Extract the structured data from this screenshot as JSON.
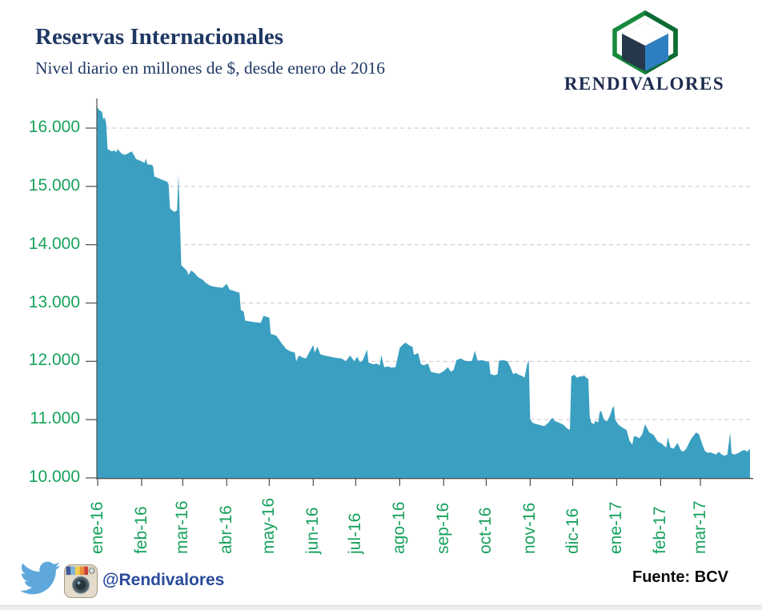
{
  "header": {
    "title": "Reservas Internacionales",
    "subtitle": "Nivel diario en millones de $, desde enero de 2016"
  },
  "logo": {
    "brand": "RENDIVALORES",
    "hex_outline": "#17893d",
    "hex_outline_dark": "#0d6c33",
    "cube_left": "#26384a",
    "cube_right": "#2e7fc2",
    "cube_top": "#ffffff"
  },
  "footer": {
    "handle": "@Rendivalores",
    "source": "Fuente: BCV",
    "twitter_blue": "#5fa8dc"
  },
  "colors": {
    "area": "#3a9fc1",
    "green_label": "#17a25c",
    "navy": "#1f3864",
    "handle_blue": "#2a4b9b",
    "grid": "#c6c6c6",
    "axis": "#4d4d4d"
  },
  "chart_data": {
    "type": "area",
    "title": "Reservas Internacionales",
    "subtitle": "Nivel diario en millones de $, desde enero de 2016",
    "unit": "millones de $",
    "source": "BCV",
    "grid": "horizontal-dashed",
    "legend": null,
    "ylim": [
      10000,
      16500
    ],
    "x_range": [
      "2016-01-01",
      "2017-04-05"
    ],
    "y_ticks": [
      {
        "label": "16.000",
        "value": 16000
      },
      {
        "label": "15.000",
        "value": 15000
      },
      {
        "label": "14.000",
        "value": 14000
      },
      {
        "label": "13.000",
        "value": 13000
      },
      {
        "label": "12.000",
        "value": 12000
      },
      {
        "label": "11.000",
        "value": 11000
      },
      {
        "label": "10.000",
        "value": 10000
      }
    ],
    "x_ticks": [
      {
        "label": "ene-16",
        "date": "2016-01-01"
      },
      {
        "label": "feb-16",
        "date": "2016-02-01"
      },
      {
        "label": "mar-16",
        "date": "2016-03-01"
      },
      {
        "label": "abr-16",
        "date": "2016-04-01"
      },
      {
        "label": "may-16",
        "date": "2016-05-01"
      },
      {
        "label": "jun-16",
        "date": "2016-06-01"
      },
      {
        "label": "jul-16",
        "date": "2016-07-01"
      },
      {
        "label": "ago-16",
        "date": "2016-08-01"
      },
      {
        "label": "sep-16",
        "date": "2016-09-01"
      },
      {
        "label": "oct-16",
        "date": "2016-10-01"
      },
      {
        "label": "nov-16",
        "date": "2016-11-01"
      },
      {
        "label": "dic-16",
        "date": "2016-12-01"
      },
      {
        "label": "ene-17",
        "date": "2017-01-01"
      },
      {
        "label": "feb-17",
        "date": "2017-02-01"
      },
      {
        "label": "mar-17",
        "date": "2017-03-01"
      }
    ],
    "series": [
      {
        "name": "Reservas internacionales (nivel diario, MM $)",
        "points": [
          [
            "2016-01-01",
            16350
          ],
          [
            "2016-01-02",
            16310
          ],
          [
            "2016-01-04",
            16280
          ],
          [
            "2016-01-05",
            16150
          ],
          [
            "2016-01-06",
            16180
          ],
          [
            "2016-01-07",
            16080
          ],
          [
            "2016-01-08",
            15640
          ],
          [
            "2016-01-11",
            15600
          ],
          [
            "2016-01-13",
            15620
          ],
          [
            "2016-01-14",
            15580
          ],
          [
            "2016-01-15",
            15640
          ],
          [
            "2016-01-18",
            15560
          ],
          [
            "2016-01-20",
            15540
          ],
          [
            "2016-01-22",
            15560
          ],
          [
            "2016-01-25",
            15600
          ],
          [
            "2016-01-27",
            15520
          ],
          [
            "2016-01-28",
            15470
          ],
          [
            "2016-01-31",
            15440
          ],
          [
            "2016-02-02",
            15420
          ],
          [
            "2016-02-03",
            15400
          ],
          [
            "2016-02-04",
            15480
          ],
          [
            "2016-02-05",
            15380
          ],
          [
            "2016-02-08",
            15370
          ],
          [
            "2016-02-09",
            15350
          ],
          [
            "2016-02-10",
            15170
          ],
          [
            "2016-02-12",
            15150
          ],
          [
            "2016-02-15",
            15120
          ],
          [
            "2016-02-17",
            15100
          ],
          [
            "2016-02-19",
            15080
          ],
          [
            "2016-02-20",
            15040
          ],
          [
            "2016-02-21",
            14620
          ],
          [
            "2016-02-24",
            14560
          ],
          [
            "2016-02-26",
            14590
          ],
          [
            "2016-02-27",
            15200
          ],
          [
            "2016-02-29",
            13650
          ],
          [
            "2016-03-02",
            13600
          ],
          [
            "2016-03-04",
            13550
          ],
          [
            "2016-03-05",
            13480
          ],
          [
            "2016-03-07",
            13560
          ],
          [
            "2016-03-09",
            13520
          ],
          [
            "2016-03-12",
            13440
          ],
          [
            "2016-03-15",
            13400
          ],
          [
            "2016-03-17",
            13350
          ],
          [
            "2016-03-20",
            13300
          ],
          [
            "2016-03-23",
            13280
          ],
          [
            "2016-03-26",
            13270
          ],
          [
            "2016-03-29",
            13260
          ],
          [
            "2016-04-01",
            13330
          ],
          [
            "2016-04-03",
            13230
          ],
          [
            "2016-04-06",
            13210
          ],
          [
            "2016-04-08",
            13190
          ],
          [
            "2016-04-10",
            13180
          ],
          [
            "2016-04-11",
            12880
          ],
          [
            "2016-04-13",
            12850
          ],
          [
            "2016-04-14",
            12700
          ],
          [
            "2016-04-18",
            12680
          ],
          [
            "2016-04-21",
            12670
          ],
          [
            "2016-04-25",
            12660
          ],
          [
            "2016-04-27",
            12780
          ],
          [
            "2016-05-01",
            12750
          ],
          [
            "2016-05-02",
            12470
          ],
          [
            "2016-05-06",
            12440
          ],
          [
            "2016-05-10",
            12300
          ],
          [
            "2016-05-13",
            12210
          ],
          [
            "2016-05-16",
            12170
          ],
          [
            "2016-05-19",
            12150
          ],
          [
            "2016-05-20",
            12000
          ],
          [
            "2016-05-22",
            12100
          ],
          [
            "2016-05-25",
            12060
          ],
          [
            "2016-05-27",
            12050
          ],
          [
            "2016-06-01",
            12280
          ],
          [
            "2016-06-02",
            12150
          ],
          [
            "2016-06-04",
            12250
          ],
          [
            "2016-06-06",
            12120
          ],
          [
            "2016-06-09",
            12100
          ],
          [
            "2016-06-13",
            12080
          ],
          [
            "2016-06-17",
            12060
          ],
          [
            "2016-06-21",
            12050
          ],
          [
            "2016-06-24",
            12000
          ],
          [
            "2016-06-27",
            12100
          ],
          [
            "2016-06-30",
            12000
          ],
          [
            "2016-07-02",
            12080
          ],
          [
            "2016-07-04",
            11980
          ],
          [
            "2016-07-06",
            12020
          ],
          [
            "2016-07-09",
            12200
          ],
          [
            "2016-07-10",
            11980
          ],
          [
            "2016-07-13",
            11950
          ],
          [
            "2016-07-16",
            11960
          ],
          [
            "2016-07-18",
            11930
          ],
          [
            "2016-07-19",
            12110
          ],
          [
            "2016-07-21",
            11900
          ],
          [
            "2016-07-24",
            11910
          ],
          [
            "2016-07-26",
            11890
          ],
          [
            "2016-07-29",
            11900
          ],
          [
            "2016-08-01",
            12230
          ],
          [
            "2016-08-03",
            12280
          ],
          [
            "2016-08-05",
            12320
          ],
          [
            "2016-08-08",
            12270
          ],
          [
            "2016-08-10",
            12250
          ],
          [
            "2016-08-11",
            12110
          ],
          [
            "2016-08-14",
            12140
          ],
          [
            "2016-08-16",
            11950
          ],
          [
            "2016-08-18",
            11930
          ],
          [
            "2016-08-21",
            11960
          ],
          [
            "2016-08-23",
            11820
          ],
          [
            "2016-08-26",
            11800
          ],
          [
            "2016-08-29",
            11790
          ],
          [
            "2016-09-01",
            11830
          ],
          [
            "2016-09-04",
            11900
          ],
          [
            "2016-09-06",
            11820
          ],
          [
            "2016-09-08",
            11850
          ],
          [
            "2016-09-10",
            12020
          ],
          [
            "2016-09-13",
            12050
          ],
          [
            "2016-09-16",
            12010
          ],
          [
            "2016-09-19",
            12000
          ],
          [
            "2016-09-21",
            12010
          ],
          [
            "2016-09-23",
            12180
          ],
          [
            "2016-09-25",
            12010
          ],
          [
            "2016-09-28",
            12020
          ],
          [
            "2016-10-01",
            12000
          ],
          [
            "2016-10-03",
            11990
          ],
          [
            "2016-10-04",
            11780
          ],
          [
            "2016-10-07",
            11760
          ],
          [
            "2016-10-09",
            11780
          ],
          [
            "2016-10-10",
            12010
          ],
          [
            "2016-10-13",
            12020
          ],
          [
            "2016-10-16",
            12000
          ],
          [
            "2016-10-18",
            11900
          ],
          [
            "2016-10-20",
            11780
          ],
          [
            "2016-10-22",
            11800
          ],
          [
            "2016-10-24",
            11770
          ],
          [
            "2016-10-26",
            11750
          ],
          [
            "2016-10-28",
            11720
          ],
          [
            "2016-10-30",
            11960
          ],
          [
            "2016-10-31",
            12020
          ],
          [
            "2016-11-01",
            11000
          ],
          [
            "2016-11-03",
            10940
          ],
          [
            "2016-11-06",
            10920
          ],
          [
            "2016-11-09",
            10900
          ],
          [
            "2016-11-11",
            10890
          ],
          [
            "2016-11-14",
            10950
          ],
          [
            "2016-11-16",
            11020
          ],
          [
            "2016-11-17",
            11030
          ],
          [
            "2016-11-18",
            10980
          ],
          [
            "2016-11-21",
            10950
          ],
          [
            "2016-11-23",
            10930
          ],
          [
            "2016-11-25",
            10900
          ],
          [
            "2016-11-27",
            10850
          ],
          [
            "2016-11-29",
            10820
          ],
          [
            "2016-11-30",
            11740
          ],
          [
            "2016-12-02",
            11770
          ],
          [
            "2016-12-04",
            11720
          ],
          [
            "2016-12-06",
            11740
          ],
          [
            "2016-12-08",
            11740
          ],
          [
            "2016-12-09",
            11760
          ],
          [
            "2016-12-10",
            11730
          ],
          [
            "2016-12-12",
            11700
          ],
          [
            "2016-12-13",
            11050
          ],
          [
            "2016-12-14",
            10950
          ],
          [
            "2016-12-16",
            10920
          ],
          [
            "2016-12-17",
            10980
          ],
          [
            "2016-12-19",
            10950
          ],
          [
            "2016-12-20",
            11130
          ],
          [
            "2016-12-21",
            11150
          ],
          [
            "2016-12-23",
            11000
          ],
          [
            "2016-12-25",
            10970
          ],
          [
            "2016-12-27",
            11050
          ],
          [
            "2016-12-29",
            11200
          ],
          [
            "2016-12-30",
            11230
          ],
          [
            "2016-12-31",
            11000
          ],
          [
            "2017-01-02",
            10920
          ],
          [
            "2017-01-04",
            10880
          ],
          [
            "2017-01-06",
            10850
          ],
          [
            "2017-01-08",
            10820
          ],
          [
            "2017-01-10",
            10640
          ],
          [
            "2017-01-12",
            10570
          ],
          [
            "2017-01-13",
            10700
          ],
          [
            "2017-01-14",
            10720
          ],
          [
            "2017-01-17",
            10680
          ],
          [
            "2017-01-19",
            10750
          ],
          [
            "2017-01-21",
            10920
          ],
          [
            "2017-01-24",
            10780
          ],
          [
            "2017-01-27",
            10740
          ],
          [
            "2017-01-30",
            10620
          ],
          [
            "2017-02-01",
            10600
          ],
          [
            "2017-02-03",
            10560
          ],
          [
            "2017-02-05",
            10520
          ],
          [
            "2017-02-06",
            10700
          ],
          [
            "2017-02-08",
            10520
          ],
          [
            "2017-02-10",
            10500
          ],
          [
            "2017-02-13",
            10600
          ],
          [
            "2017-02-15",
            10480
          ],
          [
            "2017-02-17",
            10450
          ],
          [
            "2017-02-19",
            10500
          ],
          [
            "2017-02-22",
            10650
          ],
          [
            "2017-02-24",
            10720
          ],
          [
            "2017-02-26",
            10780
          ],
          [
            "2017-02-28",
            10750
          ],
          [
            "2017-03-02",
            10600
          ],
          [
            "2017-03-04",
            10470
          ],
          [
            "2017-03-06",
            10430
          ],
          [
            "2017-03-08",
            10440
          ],
          [
            "2017-03-10",
            10420
          ],
          [
            "2017-03-12",
            10400
          ],
          [
            "2017-03-14",
            10450
          ],
          [
            "2017-03-16",
            10400
          ],
          [
            "2017-03-18",
            10380
          ],
          [
            "2017-03-20",
            10400
          ],
          [
            "2017-03-22",
            10780
          ],
          [
            "2017-03-23",
            10420
          ],
          [
            "2017-03-25",
            10400
          ],
          [
            "2017-03-28",
            10430
          ],
          [
            "2017-03-30",
            10460
          ],
          [
            "2017-04-01",
            10480
          ],
          [
            "2017-04-03",
            10450
          ],
          [
            "2017-04-05",
            10500
          ]
        ]
      }
    ]
  }
}
